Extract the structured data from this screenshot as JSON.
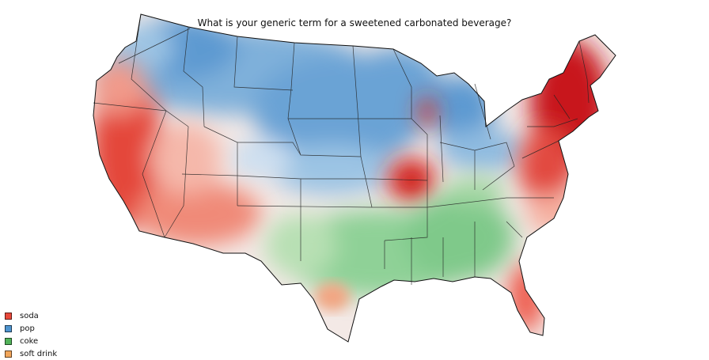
{
  "title": "What is your generic term for a sweetened carbonated beverage?",
  "legend": [
    {
      "label": "soda",
      "color": "#e8483a"
    },
    {
      "label": "pop",
      "color": "#4e94cf"
    },
    {
      "label": "coke",
      "color": "#52b35a"
    },
    {
      "label": "soft drink",
      "color": "#f2a65a"
    }
  ],
  "colors": {
    "soda": "#e8483a",
    "soda_dark": "#c8141a",
    "pop": "#4e94cf",
    "pop_light": "#c7dcef",
    "coke": "#7fc98a",
    "coke_light": "#c6e6c3",
    "soft_drink": "#f2a65a",
    "neutral": "#f3e9e6"
  }
}
